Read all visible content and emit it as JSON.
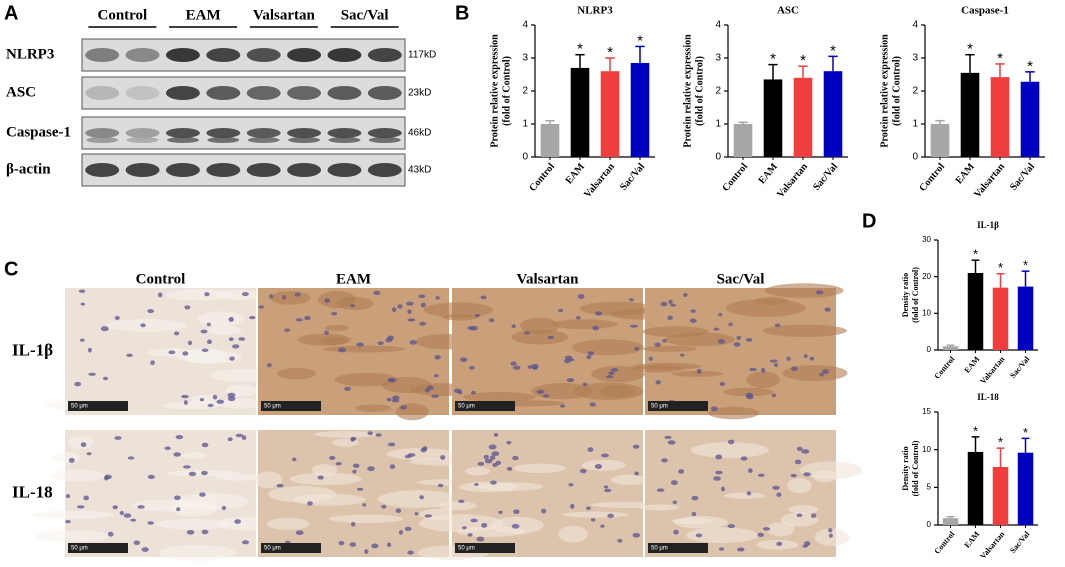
{
  "panel_labels": [
    "A",
    "B",
    "C",
    "D"
  ],
  "blot": {
    "groups": [
      "Control",
      "EAM",
      "Valsartan",
      "Sac/Val"
    ],
    "rows": [
      {
        "name": "NLRP3",
        "size": "117kD"
      },
      {
        "name": "ASC",
        "size": "23kD"
      },
      {
        "name": "Caspase-1",
        "size": "46kD"
      },
      {
        "name": "β-actin",
        "size": "43kD"
      }
    ]
  },
  "histology": {
    "groups": [
      "Control",
      "EAM",
      "Valsartan",
      "Sac/Val"
    ],
    "rows": [
      "IL-1β",
      "IL-18"
    ],
    "scale_bar": "50 μm"
  },
  "chart_data": [
    {
      "type": "bar",
      "title": "NLRP3",
      "ylabel": [
        "Protein relative expression",
        "(fold of Control)"
      ],
      "categories": [
        "Control",
        "EAM",
        "Valsartan",
        "Sac/Val"
      ],
      "values": [
        1.0,
        2.7,
        2.6,
        2.85
      ],
      "errors": [
        0.1,
        0.4,
        0.4,
        0.5
      ],
      "colors": [
        "#a6a6a8",
        "#000000",
        "#f03e3e",
        "#0000c0"
      ],
      "annotations": [
        null,
        "*",
        "*",
        "*"
      ],
      "ylim": [
        0,
        4
      ],
      "yticks": [
        0,
        1,
        2,
        3,
        4
      ]
    },
    {
      "type": "bar",
      "title": "ASC",
      "ylabel": [
        "Protein relative expression",
        "(fold of Control)"
      ],
      "categories": [
        "Control",
        "EAM",
        "Valsartan",
        "Sac/Val"
      ],
      "values": [
        1.0,
        2.35,
        2.4,
        2.6
      ],
      "errors": [
        0.05,
        0.45,
        0.35,
        0.45
      ],
      "colors": [
        "#a6a6a8",
        "#000000",
        "#f03e3e",
        "#0000c0"
      ],
      "annotations": [
        null,
        "*",
        "*",
        "*"
      ],
      "ylim": [
        0,
        4
      ],
      "yticks": [
        0,
        1,
        2,
        3,
        4
      ]
    },
    {
      "type": "bar",
      "title": "Caspase-1",
      "ylabel": [
        "Protein relative expression",
        "(fold of Control)"
      ],
      "categories": [
        "Control",
        "EAM",
        "Valsartan",
        "Sac/Val"
      ],
      "values": [
        1.0,
        2.55,
        2.42,
        2.28
      ],
      "errors": [
        0.1,
        0.55,
        0.4,
        0.3
      ],
      "colors": [
        "#a6a6a8",
        "#000000",
        "#f03e3e",
        "#0000c0"
      ],
      "annotations": [
        null,
        "*",
        "*",
        "*"
      ],
      "ylim": [
        0,
        4
      ],
      "yticks": [
        0,
        1,
        2,
        3,
        4
      ]
    },
    {
      "type": "bar",
      "title": "IL-1β",
      "ylabel": [
        "Density ratio",
        "(fold of Control)"
      ],
      "categories": [
        "Control",
        "EAM",
        "Valsartan",
        "Sac/Val"
      ],
      "values": [
        1.0,
        21,
        17,
        17.3
      ],
      "errors": [
        0.3,
        3.5,
        3.8,
        4.2
      ],
      "colors": [
        "#a6a6a8",
        "#000000",
        "#f03e3e",
        "#0000c0"
      ],
      "annotations": [
        null,
        "*",
        "*",
        "*"
      ],
      "ylim": [
        0,
        30
      ],
      "yticks": [
        0,
        10,
        20,
        30
      ]
    },
    {
      "type": "bar",
      "title": "IL-18",
      "ylabel": [
        "Density ratio",
        "(fold of Control)"
      ],
      "categories": [
        "Control",
        "EAM",
        "Valsartan",
        "Sac/Val"
      ],
      "values": [
        0.9,
        9.7,
        7.7,
        9.6
      ],
      "errors": [
        0.2,
        2.0,
        2.5,
        1.9
      ],
      "colors": [
        "#a6a6a8",
        "#000000",
        "#f03e3e",
        "#0000c0"
      ],
      "annotations": [
        null,
        "*",
        "*",
        "*"
      ],
      "ylim": [
        0,
        15
      ],
      "yticks": [
        0,
        5,
        10,
        15
      ]
    }
  ]
}
